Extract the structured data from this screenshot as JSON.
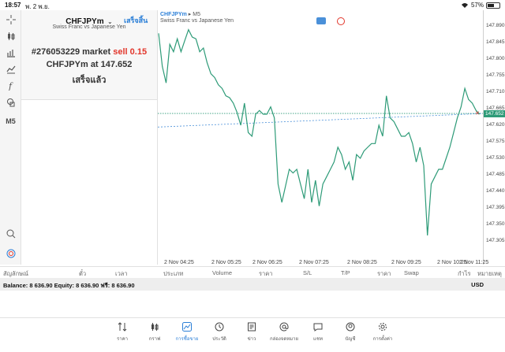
{
  "status": {
    "time": "18:57",
    "date": "พ. 2 พ.ย.",
    "battery": "57%",
    "battery_fraction": 0.57
  },
  "left_tools": [
    "crosshair-icon",
    "candles-icon",
    "bars-icon",
    "indicators-icon",
    "function-icon",
    "objects-icon"
  ],
  "left_tools_extra": {
    "timeframe": "M5"
  },
  "order": {
    "symbol": "CHFJPYm",
    "done_link": "เสร็จสิ้น",
    "description": "Swiss Franc vs Japanese Yen",
    "line1_prefix": "#276053229 market",
    "line1_action": "sell 0.15",
    "line2": "CHFJPYm at 147.652",
    "line3": "เสร็จแล้ว"
  },
  "chart": {
    "symbol": "CHFJPYm",
    "timeframe": "M5",
    "description": "Swiss Franc vs Japanese Yen",
    "line_color": "#2e9b78",
    "current_price_label": "147.652",
    "x_ticks": [
      "2 Nov 04:25",
      "2 Nov 05:25",
      "2 Nov 06:25",
      "2 Nov 07:25",
      "2 Nov 08:25",
      "2 Nov 09:25",
      "2 Nov 10:25",
      "2 Nov 11:25"
    ],
    "y_ticks": [
      "147.890",
      "147.845",
      "147.800",
      "147.755",
      "147.710",
      "147.665",
      "147.620",
      "147.575",
      "147.530",
      "147.485",
      "147.440",
      "147.395",
      "147.350",
      "147.305"
    ]
  },
  "chart_data": {
    "type": "line",
    "title": "",
    "xlabel": "",
    "ylabel": "",
    "ylim": [
      147.28,
      147.92
    ],
    "x": [
      "04:20",
      "04:25",
      "04:30",
      "04:35",
      "04:40",
      "04:45",
      "04:50",
      "04:55",
      "05:00",
      "05:05",
      "05:10",
      "05:15",
      "05:20",
      "05:25",
      "05:30",
      "05:35",
      "05:40",
      "05:45",
      "05:50",
      "05:55",
      "06:00",
      "06:05",
      "06:10",
      "06:15",
      "06:20",
      "06:25",
      "06:30",
      "06:35",
      "06:40",
      "06:45",
      "06:50",
      "06:55",
      "07:00",
      "07:05",
      "07:10",
      "07:15",
      "07:20",
      "07:25",
      "07:30",
      "07:35",
      "07:40",
      "07:45",
      "07:50",
      "07:55",
      "08:00",
      "08:05",
      "08:10",
      "08:15",
      "08:20",
      "08:25",
      "08:30",
      "08:35",
      "08:40",
      "08:45",
      "08:50",
      "08:55",
      "09:00",
      "09:05",
      "09:10",
      "09:15",
      "09:20",
      "09:25",
      "09:30",
      "09:35",
      "09:40",
      "09:45",
      "09:50",
      "09:55",
      "10:00",
      "10:05",
      "10:10",
      "10:15",
      "10:20",
      "10:25",
      "10:30",
      "10:35",
      "10:40",
      "10:45",
      "10:50",
      "10:55",
      "11:00",
      "11:05",
      "11:10",
      "11:15",
      "11:20",
      "11:25",
      "11:30"
    ],
    "series": [
      {
        "values": [
          147.87,
          147.78,
          147.735,
          147.84,
          147.82,
          147.855,
          147.82,
          147.85,
          147.88,
          147.86,
          147.855,
          147.82,
          147.83,
          147.79,
          147.76,
          147.75,
          147.73,
          147.72,
          147.7,
          147.695,
          147.68,
          147.655,
          147.62,
          147.68,
          147.6,
          147.59,
          147.65,
          147.66,
          147.65,
          147.65,
          147.67,
          147.64,
          147.46,
          147.41,
          147.455,
          147.5,
          147.49,
          147.5,
          147.46,
          147.42,
          147.5,
          147.41,
          147.47,
          147.4,
          147.46,
          147.48,
          147.5,
          147.52,
          147.56,
          147.54,
          147.5,
          147.52,
          147.47,
          147.54,
          147.53,
          147.55,
          147.56,
          147.57,
          147.57,
          147.62,
          147.59,
          147.7,
          147.64,
          147.63,
          147.61,
          147.59,
          147.59,
          147.6,
          147.57,
          147.52,
          147.56,
          147.51,
          147.32,
          147.46,
          147.48,
          147.5,
          147.5,
          147.53,
          147.56,
          147.6,
          147.64,
          147.67,
          147.72,
          147.69,
          147.68,
          147.66,
          147.65
        ]
      }
    ],
    "grid": false
  },
  "columns": [
    "สัญลักษณ์",
    "ตั๋ว",
    "เวลา",
    "ประเภท",
    "Volume",
    "ราคา",
    "S/L",
    "T/P",
    "ราคา",
    "Swap",
    "กำไร",
    "หมายเหตุ"
  ],
  "balance": {
    "text": "Balance: 8 636.90 Equity: 8 636.90 ฟรี: 8 636.90",
    "currency": "USD"
  },
  "nav": [
    {
      "label": "ราคา",
      "icon": "arrows-updown-icon"
    },
    {
      "label": "กราฟ",
      "icon": "candles-icon"
    },
    {
      "label": "การซื้อขาย",
      "icon": "trade-chart-icon",
      "active": true
    },
    {
      "label": "ประวัติ",
      "icon": "history-icon"
    },
    {
      "label": "ข่าว",
      "icon": "news-icon"
    },
    {
      "label": "กล่องจดหมาย",
      "icon": "at-icon"
    },
    {
      "label": "แชท",
      "icon": "chat-icon"
    },
    {
      "label": "บัญชี",
      "icon": "account-icon"
    },
    {
      "label": "การตั้งค่า",
      "icon": "gear-icon"
    }
  ]
}
